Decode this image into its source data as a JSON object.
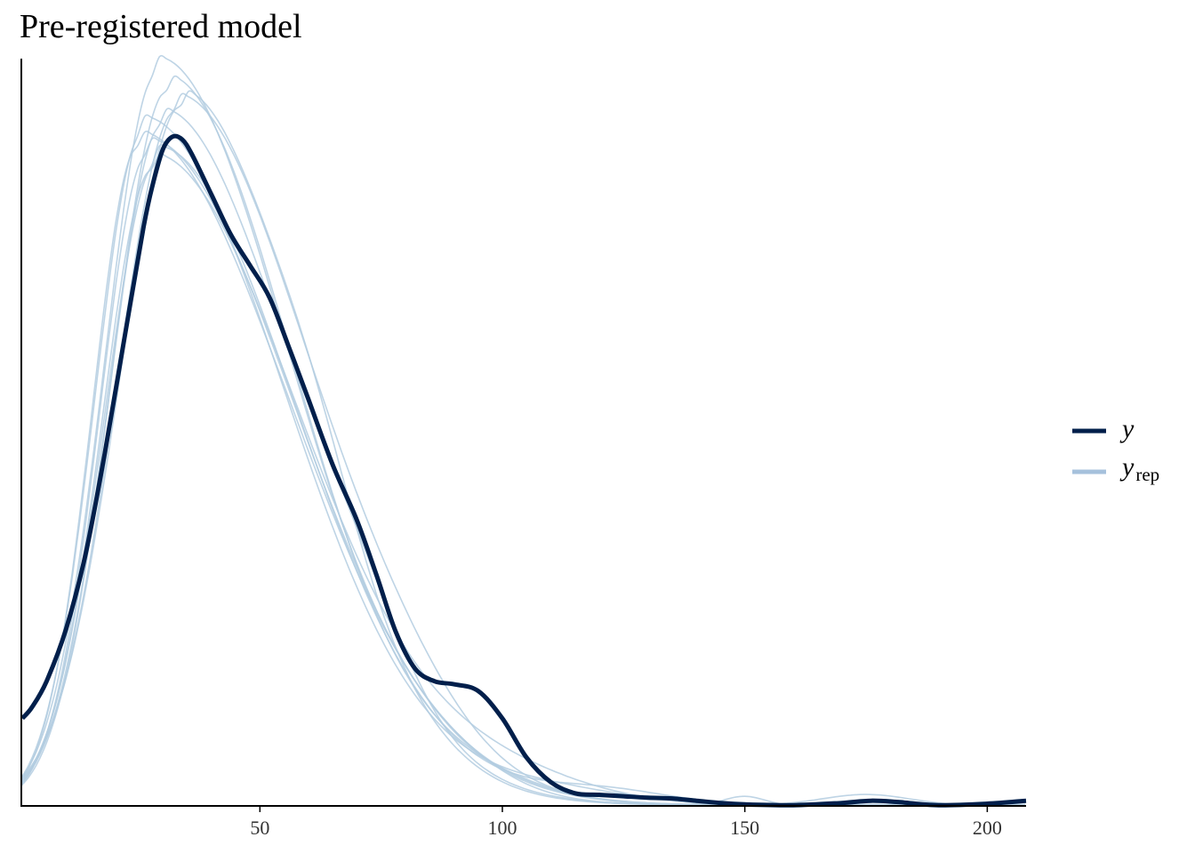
{
  "chart_data": {
    "type": "line",
    "title": "Pre-registered model",
    "xlabel": "",
    "ylabel": "",
    "xlim": [
      0.8,
      208
    ],
    "ylim": [
      0,
      1.0
    ],
    "x_ticks": [
      50,
      100,
      150,
      200
    ],
    "y_axis_labels_shown": false,
    "grid": false,
    "legend_position": "right",
    "legend": [
      {
        "label": "y",
        "subscript": "",
        "color": "#011f4b"
      },
      {
        "label": "y",
        "subscript": "rep",
        "color": "#b3cde0"
      }
    ],
    "series": [
      {
        "name": "y",
        "color": "#011f4b",
        "points": [
          [
            1,
            0.118
          ],
          [
            3,
            0.133
          ],
          [
            6,
            0.168
          ],
          [
            10,
            0.238
          ],
          [
            14,
            0.338
          ],
          [
            18,
            0.475
          ],
          [
            22,
            0.628
          ],
          [
            26,
            0.78
          ],
          [
            28,
            0.84
          ],
          [
            30,
            0.885
          ],
          [
            32,
            0.902
          ],
          [
            34,
            0.898
          ],
          [
            36,
            0.878
          ],
          [
            40,
            0.824
          ],
          [
            44,
            0.77
          ],
          [
            48,
            0.728
          ],
          [
            52,
            0.685
          ],
          [
            56,
            0.618
          ],
          [
            60,
            0.548
          ],
          [
            65,
            0.46
          ],
          [
            70,
            0.385
          ],
          [
            74,
            0.312
          ],
          [
            78,
            0.235
          ],
          [
            82,
            0.185
          ],
          [
            86,
            0.168
          ],
          [
            90,
            0.164
          ],
          [
            95,
            0.155
          ],
          [
            100,
            0.118
          ],
          [
            105,
            0.065
          ],
          [
            110,
            0.032
          ],
          [
            115,
            0.017
          ],
          [
            120,
            0.015
          ],
          [
            125,
            0.013
          ],
          [
            130,
            0.011
          ],
          [
            135,
            0.01
          ],
          [
            140,
            0.007
          ],
          [
            145,
            0.004
          ],
          [
            150,
            0.002
          ],
          [
            160,
            0.001
          ],
          [
            170,
            0.004
          ],
          [
            176,
            0.007
          ],
          [
            182,
            0.005
          ],
          [
            190,
            0.001
          ],
          [
            200,
            0.003
          ],
          [
            208,
            0.007
          ]
        ]
      },
      {
        "name": "",
        "color": "#b3cde0",
        "params": {
          "peak": 29,
          "height": 0.99,
          "w1": 11,
          "w2": 27,
          "hump": [
            [
              88,
              0.022,
              12
            ]
          ],
          "base": 0.068
        }
      },
      {
        "name": "",
        "color": "#b3cde0",
        "params": {
          "peak": 31,
          "height": 0.965,
          "w1": 11.5,
          "w2": 26,
          "hump": [
            [
              96,
              0.02,
              14
            ]
          ],
          "base": 0.07
        }
      },
      {
        "name": "",
        "color": "#b3cde0",
        "params": {
          "peak": 33,
          "height": 0.94,
          "w1": 12.5,
          "w2": 28,
          "hump": [
            [
              80,
              0.03,
              12
            ]
          ],
          "base": 0.07
        }
      },
      {
        "name": "",
        "color": "#b3cde0",
        "params": {
          "peak": 26,
          "height": 0.91,
          "w1": 10,
          "w2": 29,
          "hump": [
            [
              110,
              0.018,
              16
            ]
          ],
          "base": 0.078
        }
      },
      {
        "name": "",
        "color": "#b3cde0",
        "params": {
          "peak": 30,
          "height": 0.92,
          "w1": 11,
          "w2": 27,
          "hump": [
            [
              70,
              0.06,
              10
            ]
          ],
          "base": 0.072
        }
      },
      {
        "name": "",
        "color": "#b3cde0",
        "params": {
          "peak": 25,
          "height": 0.89,
          "w1": 9.5,
          "w2": 31,
          "hump": [
            [
              150,
              0.012,
              4
            ]
          ],
          "base": 0.082
        }
      },
      {
        "name": "",
        "color": "#b3cde0",
        "params": {
          "peak": 27,
          "height": 0.88,
          "w1": 10,
          "w2": 30,
          "hump": [
            [
              175,
              0.015,
              9
            ]
          ],
          "base": 0.08
        }
      },
      {
        "name": "",
        "color": "#b3cde0",
        "params": {
          "peak": 29,
          "height": 0.87,
          "w1": 11,
          "w2": 28.5,
          "hump": [
            [
              120,
              0.02,
              14
            ]
          ],
          "base": 0.075
        }
      },
      {
        "name": "",
        "color": "#b3cde0",
        "params": {
          "peak": 28,
          "height": 0.86,
          "w1": 10.5,
          "w2": 30,
          "hump": [
            [
              100,
              0.03,
              18
            ]
          ],
          "base": 0.085
        }
      },
      {
        "name": "",
        "color": "#b3cde0",
        "params": {
          "peak": 34,
          "height": 0.945,
          "w1": 13,
          "w2": 25,
          "hump": [
            [
              62,
              0.05,
              8
            ]
          ],
          "base": 0.064
        }
      }
    ]
  }
}
